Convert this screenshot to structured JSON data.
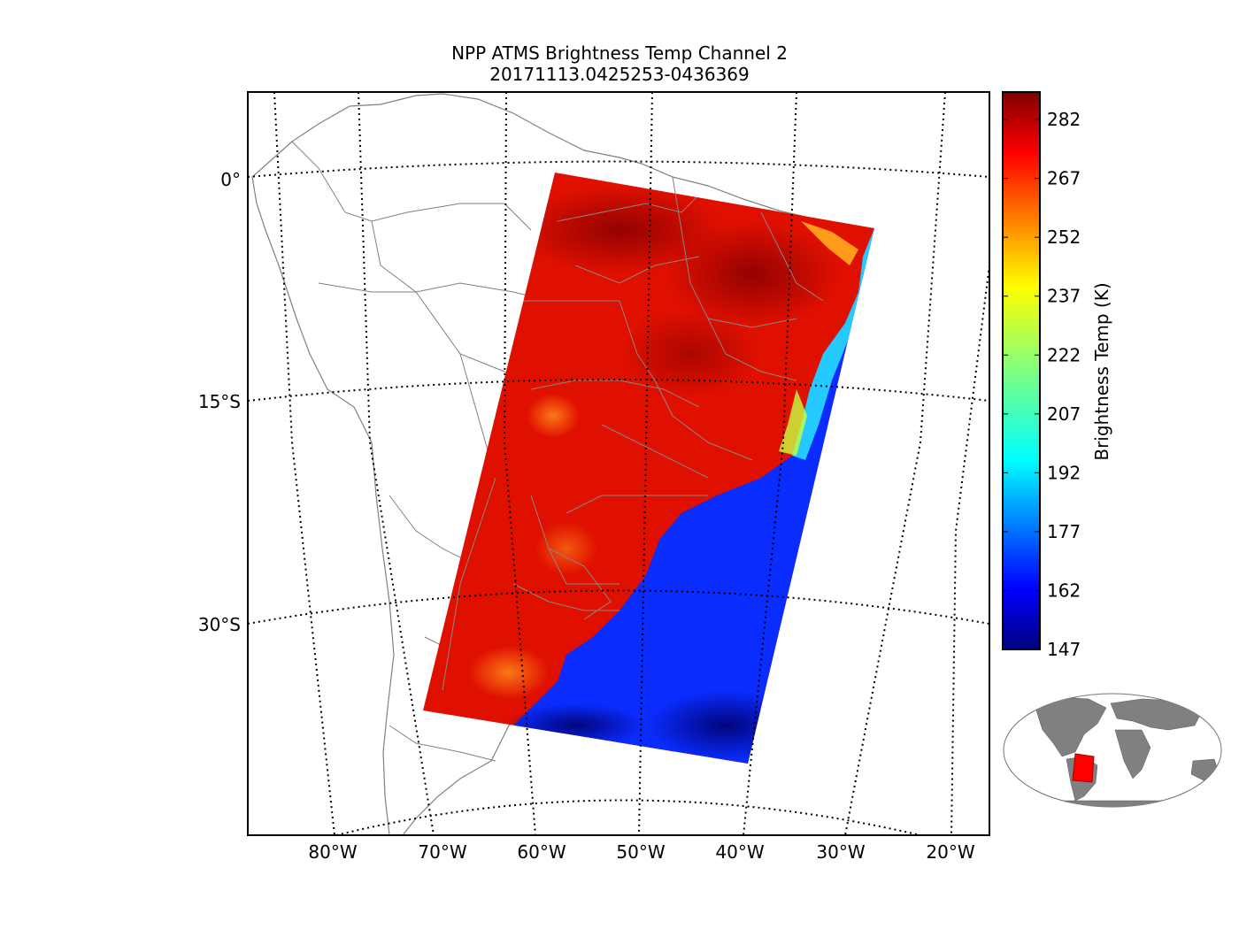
{
  "title": {
    "line1": "NPP ATMS Brightness Temp Channel 2",
    "line2": "20171113.0425253-0436369"
  },
  "map": {
    "projection": "orthographic",
    "lat_labels": [
      "0°",
      "15°S",
      "30°S"
    ],
    "lon_labels": [
      "80°W",
      "70°W",
      "60°W",
      "50°W",
      "40°W",
      "30°W",
      "20°W"
    ],
    "gridlines": "dotted",
    "colors": {
      "land_outline": "#808080",
      "border": "#000000"
    }
  },
  "colorbar": {
    "label": "Brightness Temp (K)",
    "colormap": "jet",
    "min": 147,
    "max": 289,
    "ticks": [
      "282",
      "267",
      "252",
      "237",
      "222",
      "207",
      "192",
      "177",
      "162",
      "147"
    ]
  },
  "inset": {
    "land_color": "#808080",
    "swath_color": "#ff0000"
  }
}
